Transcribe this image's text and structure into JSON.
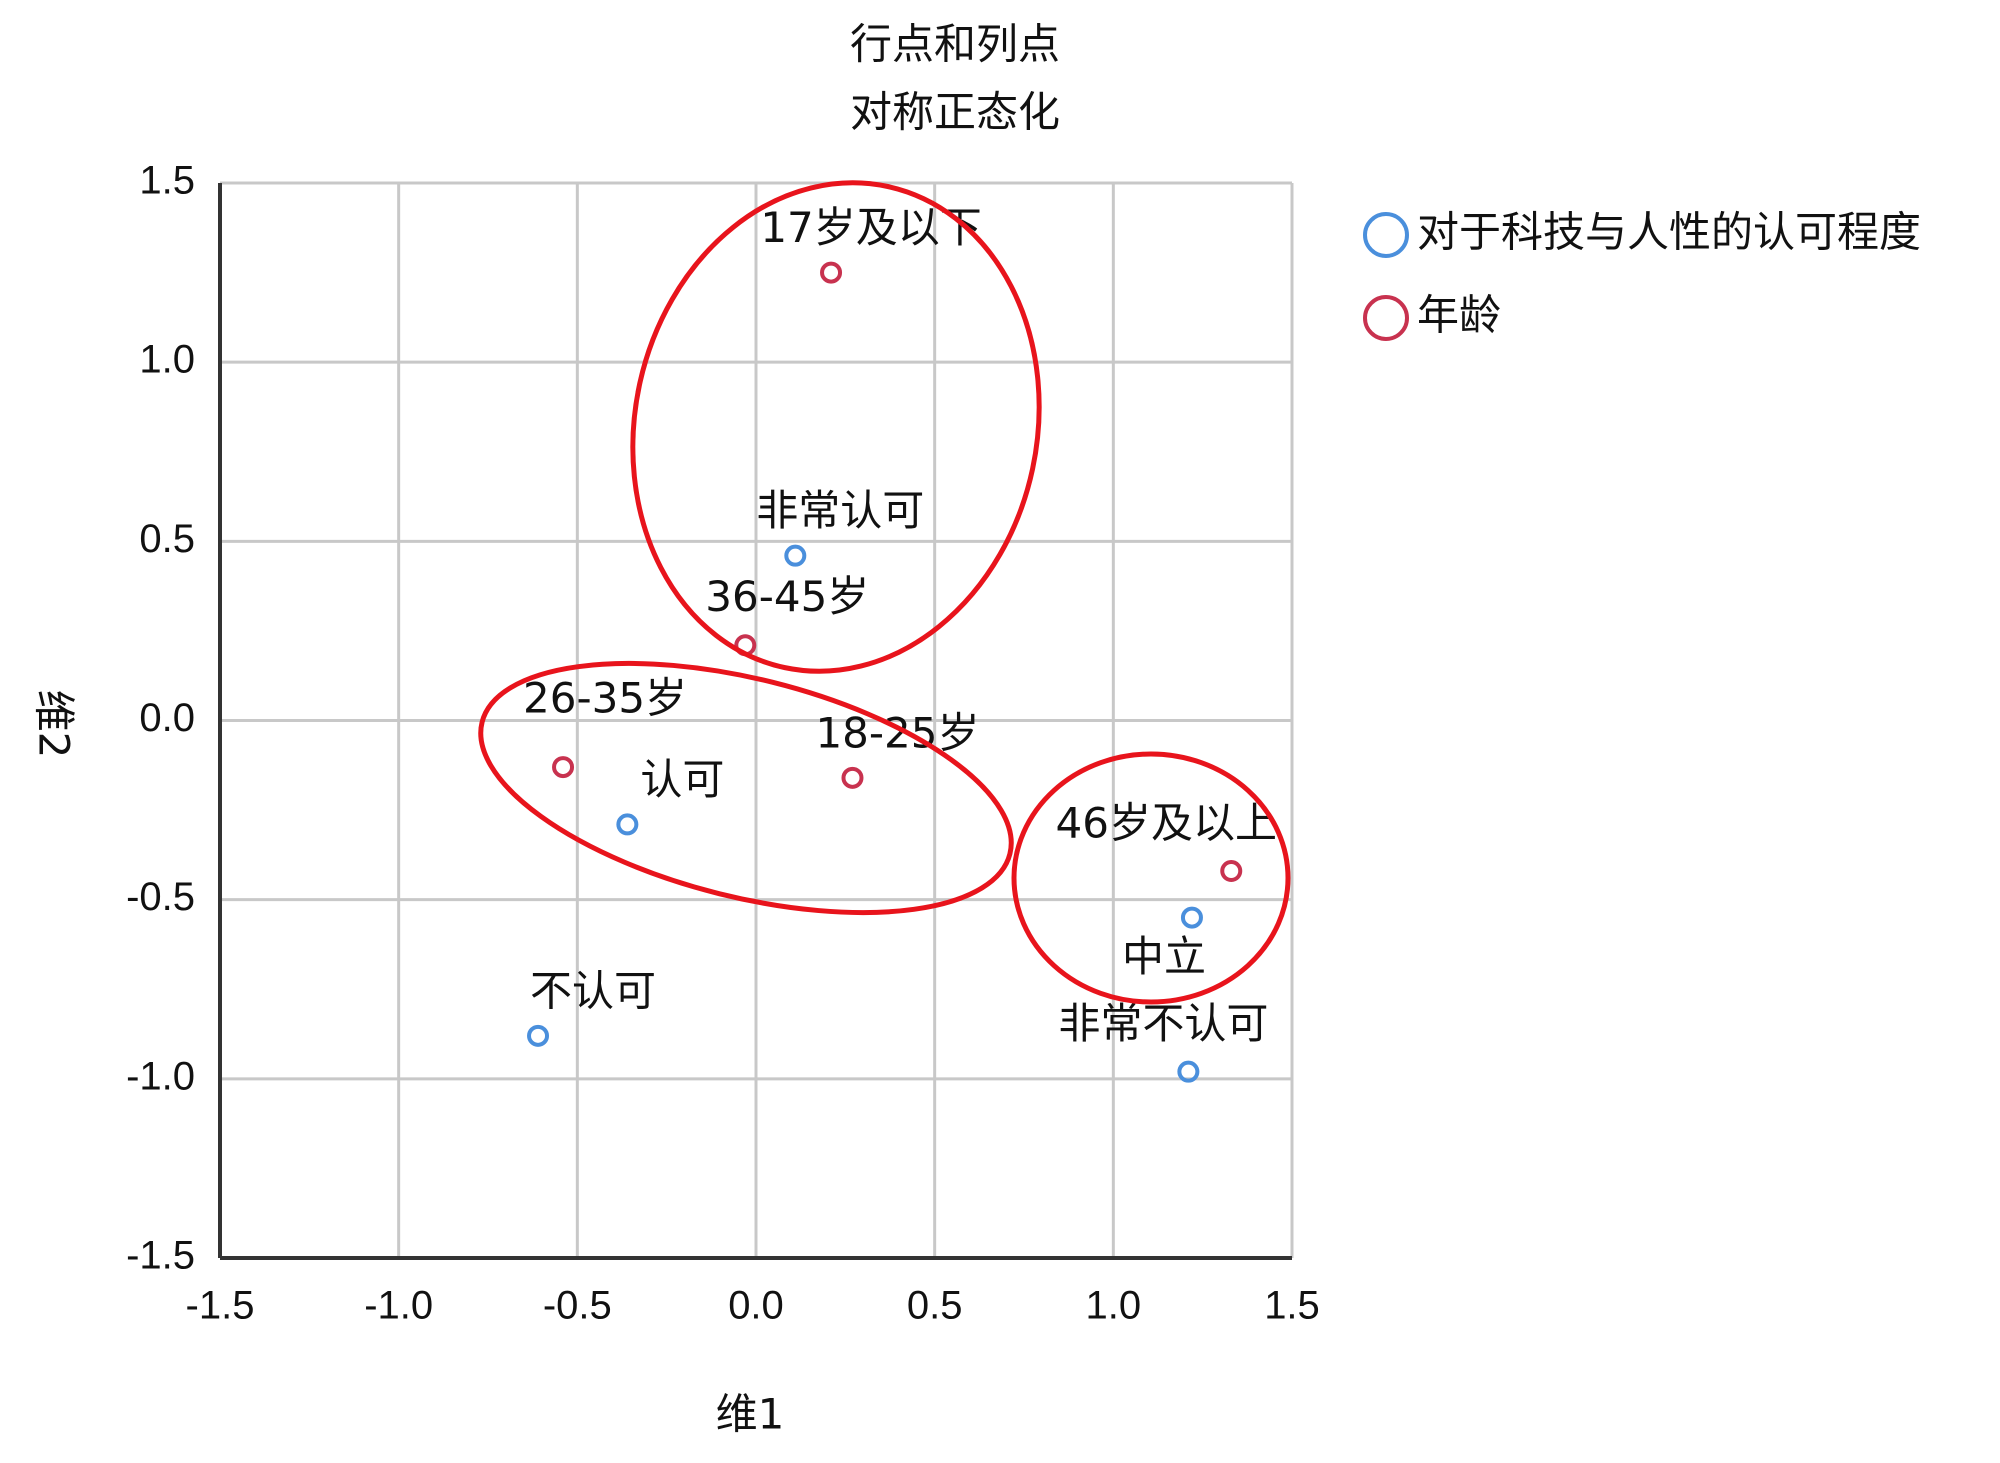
{
  "chart_data": {
    "type": "scatter",
    "title": [
      "行点和列点",
      "对称正态化"
    ],
    "x_label": "维1",
    "y_label": "维2",
    "xlim": [
      -1.5,
      1.5
    ],
    "ylim": [
      -1.5,
      1.5
    ],
    "xticks": [
      -1.5,
      {
        "value": -1,
        "label": "-1.0"
      },
      -0.5,
      {
        "value": 0,
        "label": "0.0"
      },
      0.5,
      {
        "value": 1,
        "label": "1.0"
      },
      1.5
    ],
    "yticks": [
      -1.5,
      {
        "value": -1,
        "label": "-1.0"
      },
      -0.5,
      {
        "value": 0,
        "label": "0.0"
      },
      0.5,
      {
        "value": 1,
        "label": "1.0"
      },
      1.5
    ],
    "grid": true,
    "legend": "top-right",
    "series": [
      {
        "name": "对于科技与人性的认可程度",
        "color": "#4a8fdc",
        "labels": [
          "非常认可",
          "认可",
          "不认可",
          "中立",
          "非常不认可"
        ],
        "x": [
          0.11,
          -0.36,
          -0.61,
          1.22,
          1.21
        ],
        "values": [
          0.46,
          -0.29,
          -0.88,
          -0.55,
          -0.98
        ]
      },
      {
        "name": "年龄",
        "color": "#c8324f",
        "labels": [
          "17岁及以下",
          "36-45岁",
          "26-35岁",
          "18-25岁",
          "46岁及以上"
        ],
        "x": [
          0.21,
          -0.03,
          -0.54,
          0.27,
          1.33
        ],
        "values": [
          1.25,
          0.21,
          -0.13,
          -0.16,
          -0.42
        ]
      }
    ]
  }
}
